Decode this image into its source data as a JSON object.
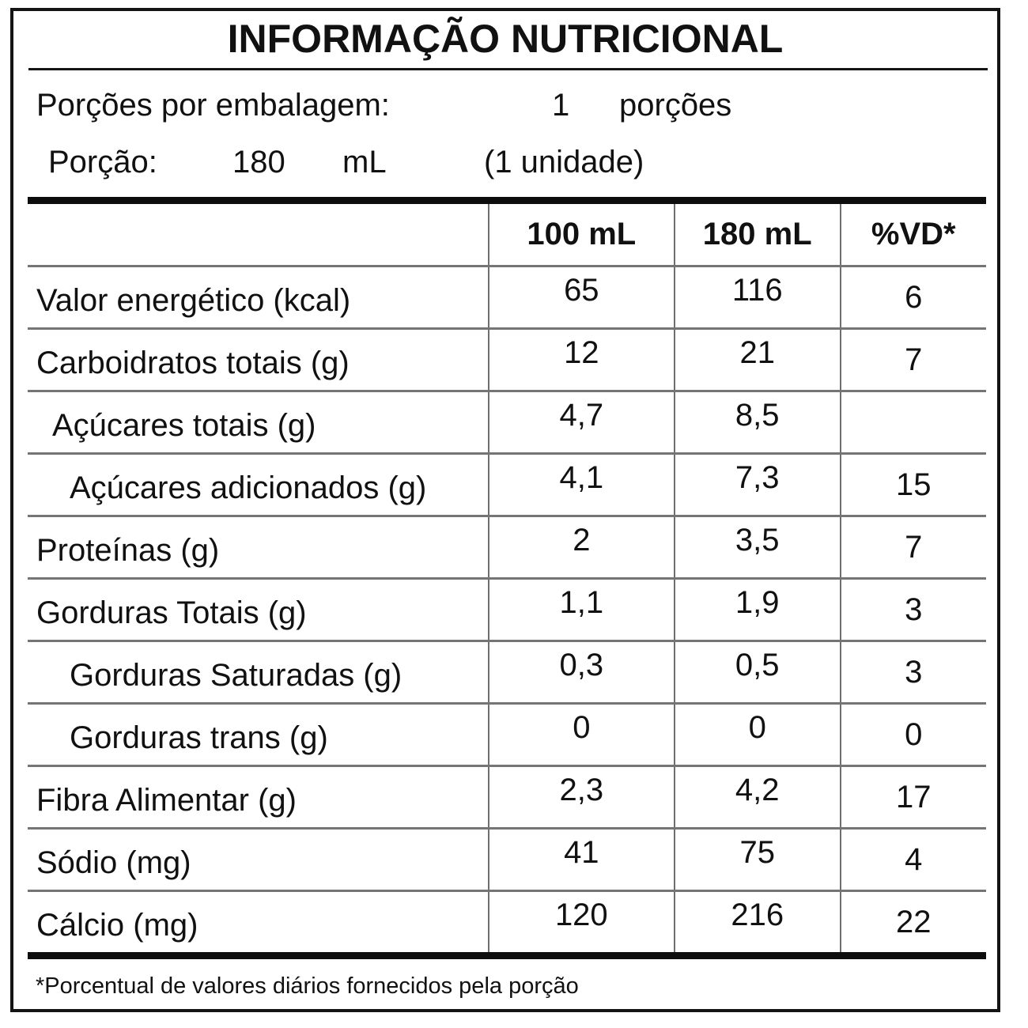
{
  "title": "INFORMAÇÃO NUTRICIONAL",
  "servings_line": {
    "label": "Porções por embalagem:",
    "value": "1",
    "unit": "porções"
  },
  "portion_line": {
    "label": "Porção:",
    "value": "180",
    "unit": "mL",
    "note": "(1 unidade)"
  },
  "table": {
    "headers": {
      "blank": "",
      "col100": "100 mL",
      "col180": "180 mL",
      "vd": "%VD*"
    },
    "rows": [
      {
        "label": "Valor energético (kcal)",
        "v100": "65",
        "v180": "116",
        "vd": "6"
      },
      {
        "label": "Carboidratos totais (g)",
        "v100": "12",
        "v180": "21",
        "vd": "7"
      },
      {
        "label": "Açúcares totais (g)",
        "v100": "4,7",
        "v180": "8,5",
        "vd": ""
      },
      {
        "label": "Açúcares adicionados (g)",
        "v100": "4,1",
        "v180": "7,3",
        "vd": "15"
      },
      {
        "label": "Proteínas (g)",
        "v100": "2",
        "v180": "3,5",
        "vd": "7"
      },
      {
        "label": "Gorduras Totais (g)",
        "v100": "1,1",
        "v180": "1,9",
        "vd": "3"
      },
      {
        "label": "Gorduras Saturadas (g)",
        "v100": "0,3",
        "v180": "0,5",
        "vd": "3"
      },
      {
        "label": "Gorduras trans (g)",
        "v100": "0",
        "v180": "0",
        "vd": "0"
      },
      {
        "label": "Fibra Alimentar (g)",
        "v100": "2,3",
        "v180": "4,2",
        "vd": "17"
      },
      {
        "label": "Sódio (mg)",
        "v100": "41",
        "v180": "75",
        "vd": "4"
      },
      {
        "label": "Cálcio (mg)",
        "v100": "120",
        "v180": "216",
        "vd": "22"
      }
    ]
  },
  "footnote": "*Porcentual de valores diários fornecidos pela porção"
}
